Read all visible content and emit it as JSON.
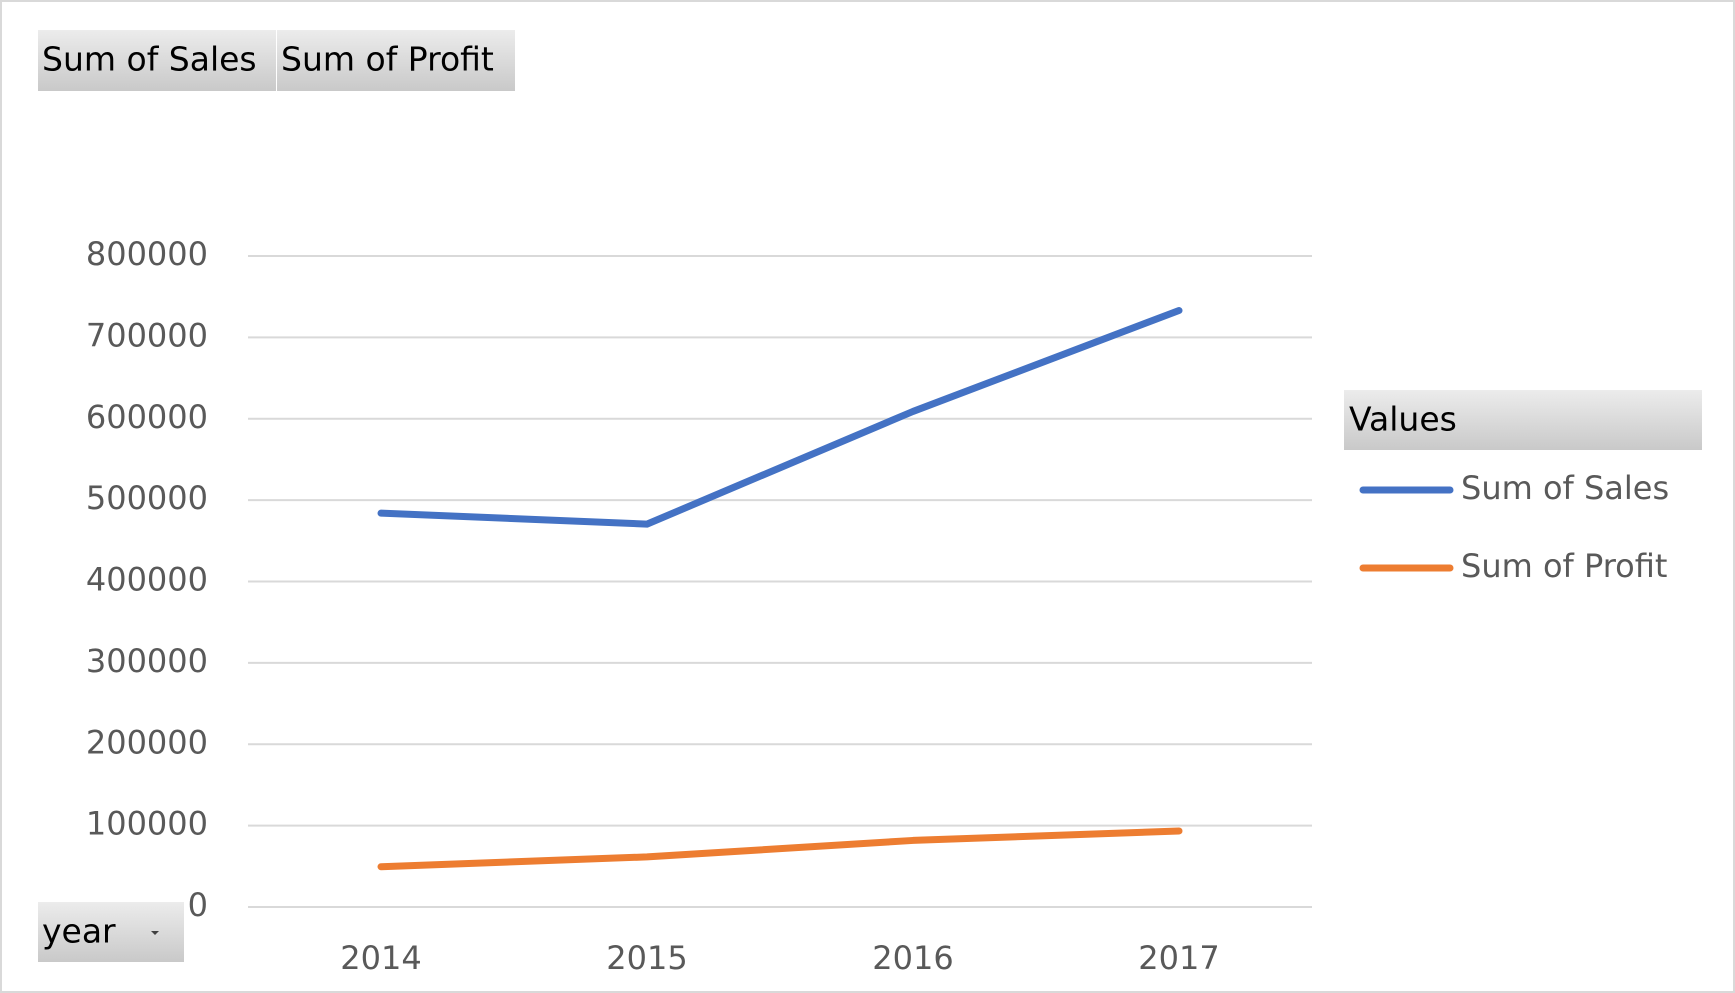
{
  "chart_data": {
    "type": "line",
    "categories": [
      "2014",
      "2015",
      "2016",
      "2017"
    ],
    "series": [
      {
        "name": "Sum of Sales",
        "color": "#4472c4",
        "values": [
          484000,
          470500,
          609000,
          733000
        ]
      },
      {
        "name": "Sum of Profit",
        "color": "#ed7d31",
        "values": [
          49500,
          61600,
          81800,
          93400
        ]
      }
    ],
    "ylim": [
      0,
      800000
    ],
    "yticks": [
      0,
      100000,
      200000,
      300000,
      400000,
      500000,
      600000,
      700000,
      800000
    ],
    "grid": true,
    "legend_title": "Values",
    "legend_position": "right",
    "axis_field": "year"
  }
}
